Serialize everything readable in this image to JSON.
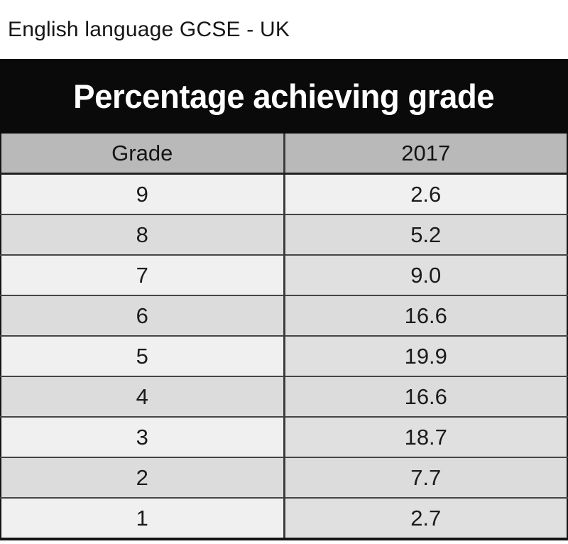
{
  "page": {
    "title": "English language GCSE - UK"
  },
  "table": {
    "banner": "Percentage achieving grade",
    "columns": [
      "Grade",
      "2017"
    ],
    "rows": [
      {
        "grade": "9",
        "value": "2.6"
      },
      {
        "grade": "8",
        "value": "5.2"
      },
      {
        "grade": "7",
        "value": "9.0"
      },
      {
        "grade": "6",
        "value": "16.6"
      },
      {
        "grade": "5",
        "value": "19.9"
      },
      {
        "grade": "4",
        "value": "16.6"
      },
      {
        "grade": "3",
        "value": "18.7"
      },
      {
        "grade": "2",
        "value": "7.7"
      },
      {
        "grade": "1",
        "value": "2.7"
      }
    ]
  },
  "colors": {
    "banner_bg": "#0a0a0a",
    "banner_text": "#ffffff",
    "header_bg": "#b9b9b9",
    "row_light": "#f0f0f0",
    "row_dark": "#dcdcdc",
    "value_shade": "#e0e0e0"
  },
  "chart_data": {
    "type": "table",
    "title": "Percentage achieving grade",
    "subtitle": "English language GCSE - UK",
    "columns": [
      "Grade",
      "2017"
    ],
    "categories": [
      "9",
      "8",
      "7",
      "6",
      "5",
      "4",
      "3",
      "2",
      "1"
    ],
    "series": [
      {
        "name": "2017",
        "values": [
          2.6,
          5.2,
          9.0,
          16.6,
          19.9,
          16.6,
          18.7,
          7.7,
          2.7
        ]
      }
    ]
  }
}
